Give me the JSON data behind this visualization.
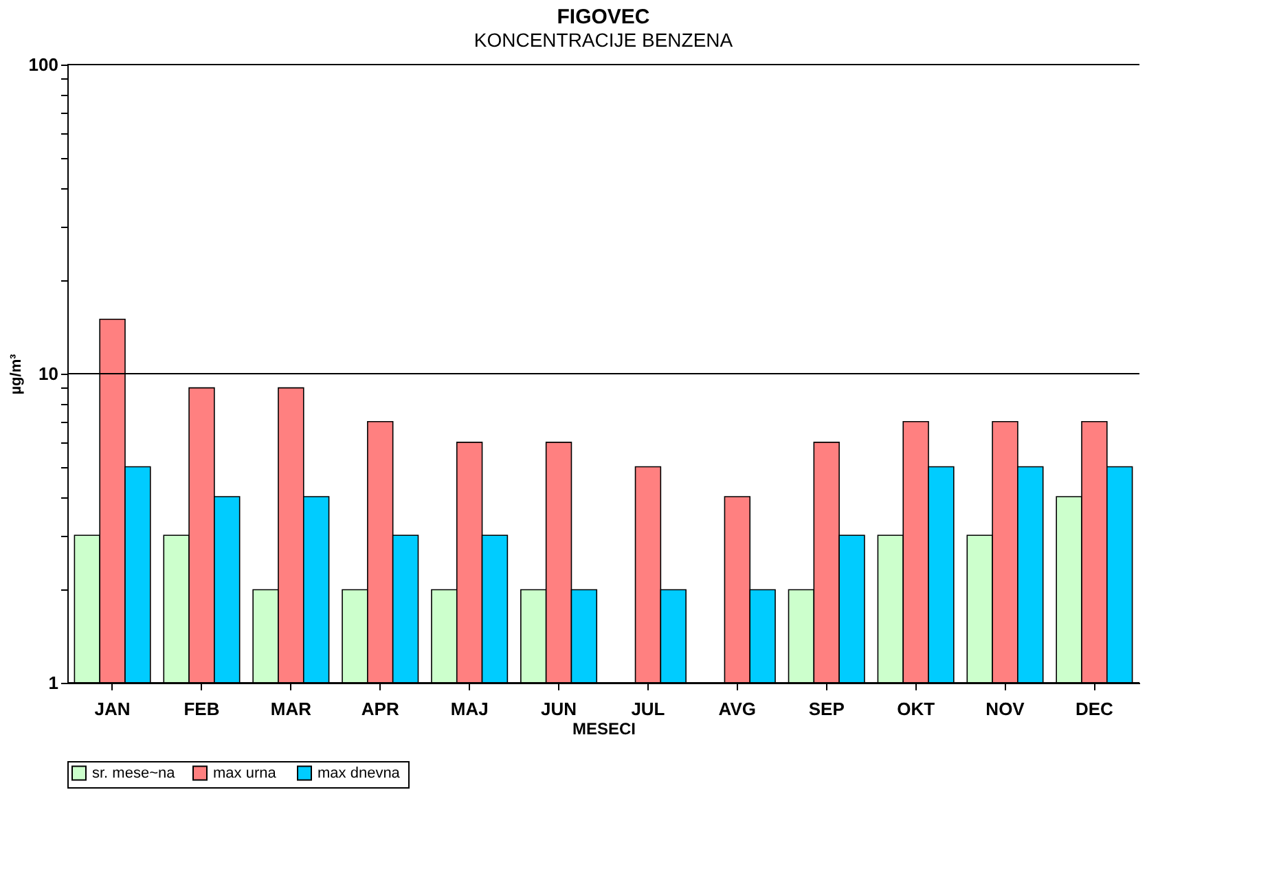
{
  "chart_data": {
    "type": "bar",
    "title": "FIGOVEC",
    "subtitle": "KONCENTRACIJE BENZENA",
    "xlabel": "MESECI",
    "ylabel": "µg/m³",
    "categories": [
      "JAN",
      "FEB",
      "MAR",
      "APR",
      "MAJ",
      "JUN",
      "JUL",
      "AVG",
      "SEP",
      "OKT",
      "NOV",
      "DEC"
    ],
    "series": [
      {
        "name": "sr. mese~na",
        "color": "#ccffcc",
        "values": [
          3,
          3,
          2,
          2,
          2,
          2,
          null,
          null,
          2,
          3,
          3,
          4
        ]
      },
      {
        "name": "max  urna",
        "color": "#ff8080",
        "values": [
          15,
          9,
          9,
          7,
          6,
          6,
          5,
          4,
          6,
          7,
          7,
          7
        ]
      },
      {
        "name": "max  dnevna",
        "color": "#00ccff",
        "values": [
          5,
          4,
          4,
          3,
          3,
          2,
          2,
          2,
          3,
          5,
          5,
          5
        ]
      }
    ],
    "log": true,
    "ylim": [
      1,
      100
    ],
    "yticks": [
      1,
      {
        "value": 2,
        "label": null
      },
      {
        "value": 3,
        "label": null
      },
      {
        "value": 4,
        "label": null
      },
      {
        "value": 5,
        "label": null
      },
      {
        "value": 6,
        "label": null
      },
      {
        "value": 7,
        "label": null
      },
      {
        "value": 8,
        "label": null
      },
      {
        "value": 9,
        "label": null
      },
      10,
      {
        "value": 20,
        "label": null
      },
      {
        "value": 30,
        "label": null
      },
      {
        "value": 40,
        "label": null
      },
      {
        "value": 50,
        "label": null
      },
      {
        "value": 60,
        "label": null
      },
      {
        "value": 70,
        "label": null
      },
      {
        "value": 80,
        "label": null
      },
      {
        "value": 90,
        "label": null
      },
      100
    ],
    "grid": "y",
    "legend": "bottom"
  }
}
